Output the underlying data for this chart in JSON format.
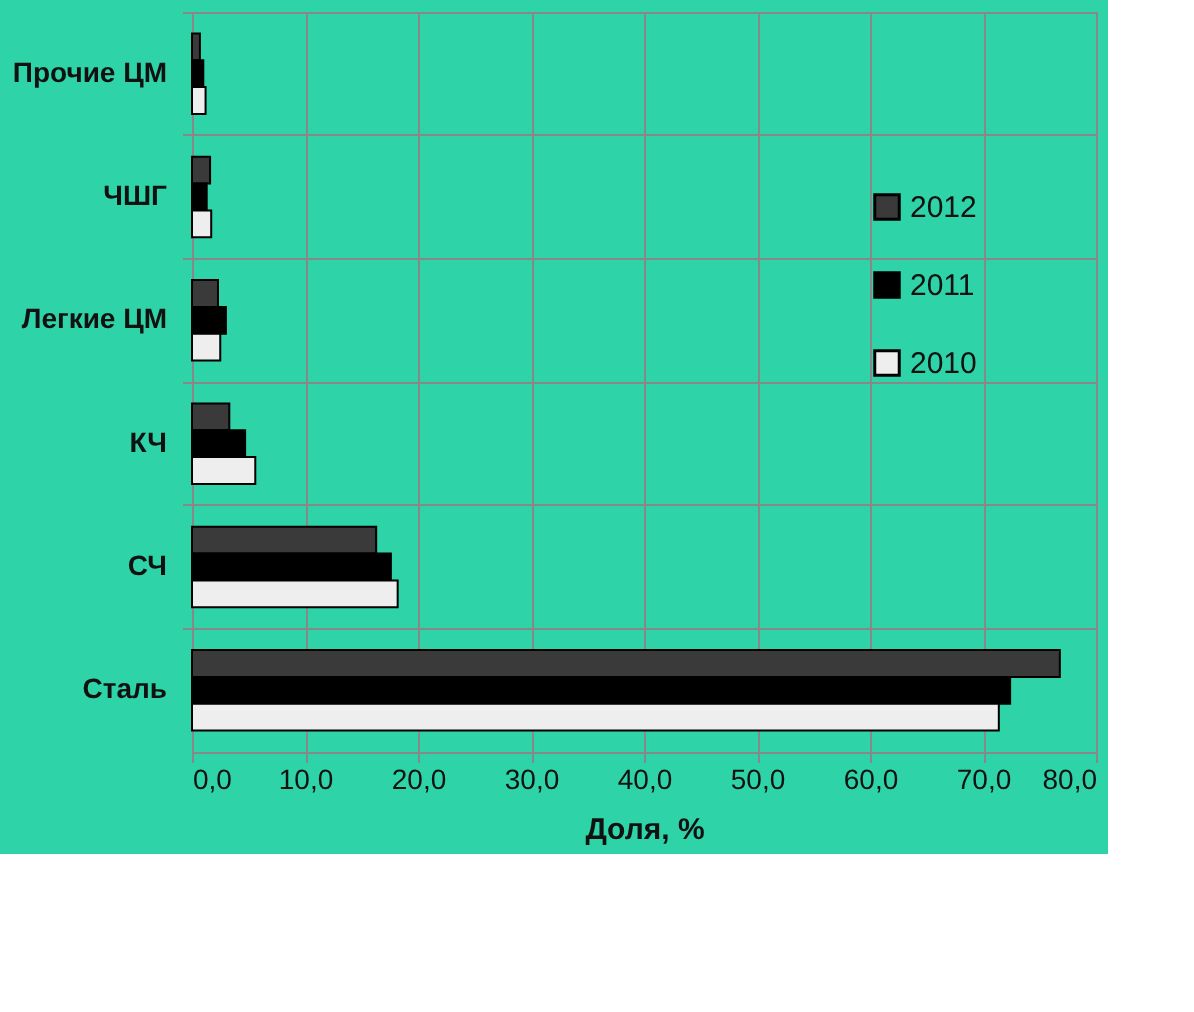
{
  "chart_data": {
    "type": "bar",
    "orientation": "horizontal",
    "xlabel": "Доля, %",
    "categories": [
      "Прочие ЦМ",
      "ЧШГ",
      "Легкие ЦМ",
      "КЧ",
      "СЧ",
      "Сталь"
    ],
    "series": [
      {
        "name": "2012",
        "color": "#3a3a3a",
        "values": [
          0.7,
          1.6,
          2.3,
          3.3,
          16.3,
          76.8
        ]
      },
      {
        "name": "2011",
        "color": "#000000",
        "values": [
          1.0,
          1.3,
          3.0,
          4.7,
          17.6,
          72.4
        ]
      },
      {
        "name": "2010",
        "color": "#eeeeee",
        "values": [
          1.2,
          1.7,
          2.5,
          5.6,
          18.2,
          71.4
        ]
      }
    ],
    "xlim": [
      0,
      80
    ],
    "xticks": [
      {
        "value": 0,
        "label": "0,0"
      },
      {
        "value": 10,
        "label": "10,0"
      },
      {
        "value": 20,
        "label": "20,0"
      },
      {
        "value": 30,
        "label": "30,0"
      },
      {
        "value": 40,
        "label": "40,0"
      },
      {
        "value": 50,
        "label": "50,0"
      },
      {
        "value": 60,
        "label": "60,0"
      },
      {
        "value": 70,
        "label": "70,0"
      },
      {
        "value": 80,
        "label": "80,0"
      }
    ],
    "grid": true,
    "legend": "right"
  }
}
